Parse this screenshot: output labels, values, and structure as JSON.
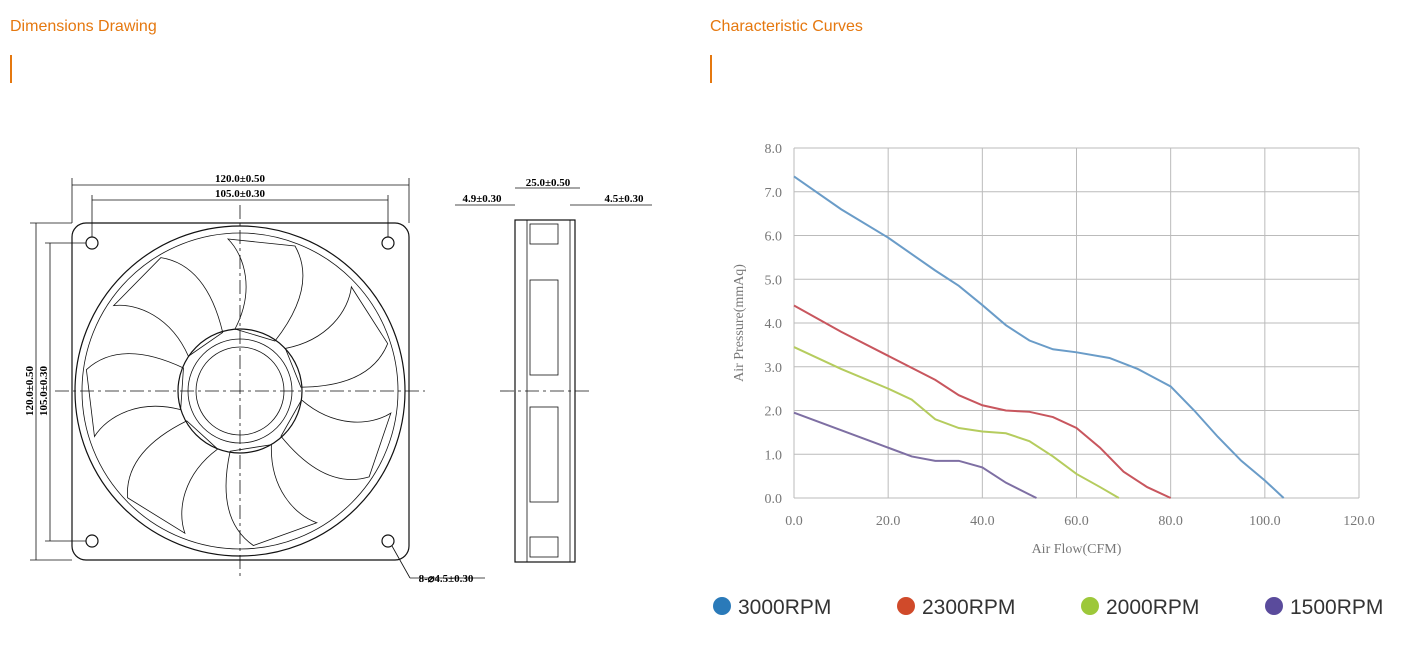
{
  "header": {
    "left_title": "Dimensions Drawing",
    "right_title": "Characteristic Curves"
  },
  "drawing": {
    "dimensions": [
      "120.0±0.50",
      "105.0±0.30",
      "120.0±0.50",
      "105.0±0.30",
      "25.0±0.50",
      "4.9±0.30",
      "4.5±0.30",
      "8-⌀4.5±0.30"
    ]
  },
  "chart_data": {
    "type": "line",
    "xlabel": "Air Flow(CFM)",
    "ylabel": "Air Pressure(mmAq)",
    "grid": true,
    "legend": "bottom",
    "xlim": [
      0,
      120
    ],
    "ylim": [
      0,
      8
    ],
    "xticks": [
      {
        "value": 0,
        "label": "0.0"
      },
      {
        "value": 20,
        "label": "20.0"
      },
      {
        "value": 40,
        "label": "40.0"
      },
      {
        "value": 60,
        "label": "60.0"
      },
      {
        "value": 80,
        "label": "80.0"
      },
      {
        "value": 100,
        "label": "100.0"
      },
      {
        "value": 120,
        "label": "120.0"
      }
    ],
    "yticks": [
      {
        "value": 0,
        "label": "0.0"
      },
      {
        "value": 1,
        "label": "1.0"
      },
      {
        "value": 2,
        "label": "2.0"
      },
      {
        "value": 3,
        "label": "3.0"
      },
      {
        "value": 4,
        "label": "4.0"
      },
      {
        "value": 5,
        "label": "5.0"
      },
      {
        "value": 6,
        "label": "6.0"
      },
      {
        "value": 7,
        "label": "7.0"
      },
      {
        "value": 8,
        "label": "8.0"
      }
    ],
    "series": [
      {
        "name": "3000RPM",
        "color": "#6a9cc8",
        "marker_color": "#2a7ab9",
        "x": [
          0,
          10,
          20,
          30,
          35,
          40,
          45,
          50,
          55,
          60,
          67,
          73,
          80,
          85,
          90,
          95,
          100,
          104
        ],
        "values": [
          7.35,
          6.6,
          5.95,
          5.2,
          4.85,
          4.41,
          3.95,
          3.6,
          3.4,
          3.33,
          3.2,
          2.95,
          2.55,
          2.0,
          1.4,
          0.85,
          0.4,
          0
        ]
      },
      {
        "name": "2300RPM",
        "color": "#c8565e",
        "marker_color": "#d04a2a",
        "x": [
          0,
          10,
          20,
          30,
          35,
          40,
          45,
          50,
          55,
          60,
          65,
          70,
          75,
          80
        ],
        "values": [
          4.4,
          3.8,
          3.25,
          2.7,
          2.35,
          2.12,
          2.0,
          1.97,
          1.85,
          1.6,
          1.15,
          0.6,
          0.25,
          0
        ]
      },
      {
        "name": "2000RPM",
        "color": "#b5cc5e",
        "marker_color": "#9dc83a",
        "x": [
          0,
          10,
          20,
          25,
          30,
          35,
          40,
          45,
          50,
          55,
          60,
          65,
          69
        ],
        "values": [
          3.45,
          2.95,
          2.5,
          2.25,
          1.8,
          1.6,
          1.52,
          1.48,
          1.3,
          0.95,
          0.55,
          0.25,
          0
        ]
      },
      {
        "name": "1500RPM",
        "color": "#7e6fa3",
        "marker_color": "#5a4b9c",
        "x": [
          0,
          10,
          20,
          25,
          30,
          35,
          40,
          45,
          50,
          51.5
        ],
        "values": [
          1.95,
          1.55,
          1.15,
          0.95,
          0.85,
          0.85,
          0.7,
          0.35,
          0.08,
          0
        ]
      }
    ]
  }
}
